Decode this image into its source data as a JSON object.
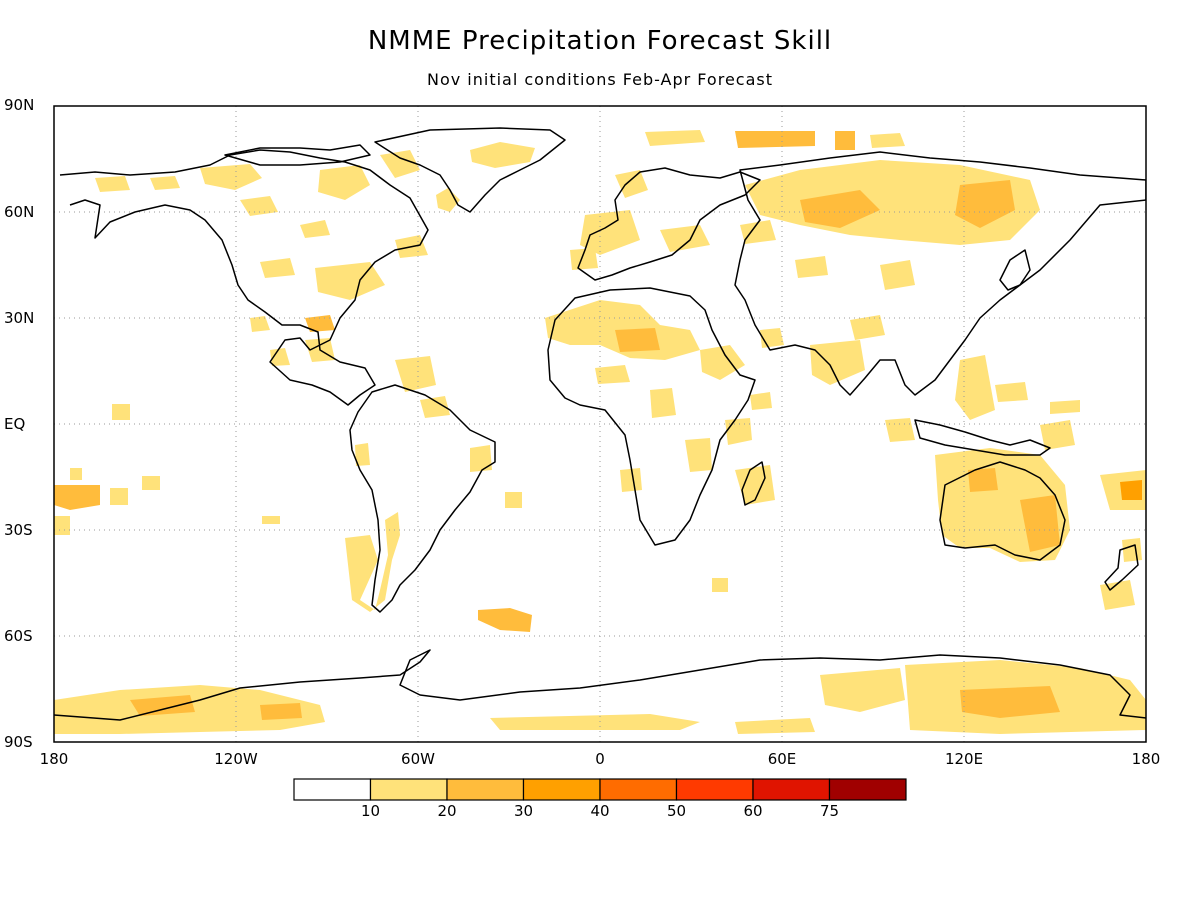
{
  "title": "NMME Precipitation Forecast Skill",
  "subtitle": "Nov initial conditions  Feb-Apr Forecast",
  "lat_labels": [
    "90N",
    "60N",
    "30N",
    "EQ",
    "30S",
    "60S",
    "90S"
  ],
  "lon_labels": [
    "180",
    "120W",
    "60W",
    "0",
    "60E",
    "120E",
    "180"
  ],
  "colorbar": {
    "labels": [
      "10",
      "20",
      "30",
      "40",
      "50",
      "60",
      "75"
    ],
    "colors": [
      "#ffffff",
      "#ffe27a",
      "#ffbc3c",
      "#ffa000",
      "#ff6c00",
      "#ff3a00",
      "#e01400",
      "#a00000"
    ]
  },
  "colors": {
    "skill_low": "#ffe27a",
    "skill_mid": "#ffbc3c",
    "skill_high": "#ffa000",
    "skill_top": "#ff6c00",
    "coastline": "#000000",
    "grid": "#9a9a9a"
  }
}
